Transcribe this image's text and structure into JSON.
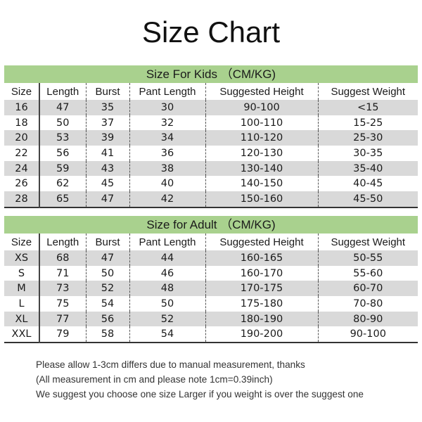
{
  "title": "Size Chart",
  "columns": [
    "Size",
    "Length",
    "Burst",
    "Pant Length",
    "Suggested Height",
    "Suggest Weight"
  ],
  "kids": {
    "heading": "Size For Kids （CM/KG)",
    "rows": [
      [
        "16",
        "47",
        "35",
        "30",
        "90-100",
        "<15"
      ],
      [
        "18",
        "50",
        "37",
        "32",
        "100-110",
        "15-25"
      ],
      [
        "20",
        "53",
        "39",
        "34",
        "110-120",
        "25-30"
      ],
      [
        "22",
        "56",
        "41",
        "36",
        "120-130",
        "30-35"
      ],
      [
        "24",
        "59",
        "43",
        "38",
        "130-140",
        "35-40"
      ],
      [
        "26",
        "62",
        "45",
        "40",
        "140-150",
        "40-45"
      ],
      [
        "28",
        "65",
        "47",
        "42",
        "150-160",
        "45-50"
      ]
    ]
  },
  "adult": {
    "heading": "Size for Adult （CM/KG)",
    "rows": [
      [
        "XS",
        "68",
        "47",
        "44",
        "160-165",
        "50-55"
      ],
      [
        "S",
        "71",
        "50",
        "46",
        "160-170",
        "55-60"
      ],
      [
        "M",
        "73",
        "52",
        "48",
        "170-175",
        "60-70"
      ],
      [
        "L",
        "75",
        "54",
        "50",
        "175-180",
        "70-80"
      ],
      [
        "XL",
        "77",
        "56",
        "52",
        "180-190",
        "80-90"
      ],
      [
        "XXL",
        "79",
        "58",
        "54",
        "190-200",
        "90-100"
      ]
    ]
  },
  "notes": [
    "Please allow 1-3cm differs due to manual measurement, thanks",
    "(All measurement in cm and please note 1cm=0.39inch)",
    "We suggest you choose one size Larger if you weight is over the suggest one"
  ],
  "colors": {
    "header_bar": "#a9d18e",
    "alt_row": "#d9d9d9"
  }
}
